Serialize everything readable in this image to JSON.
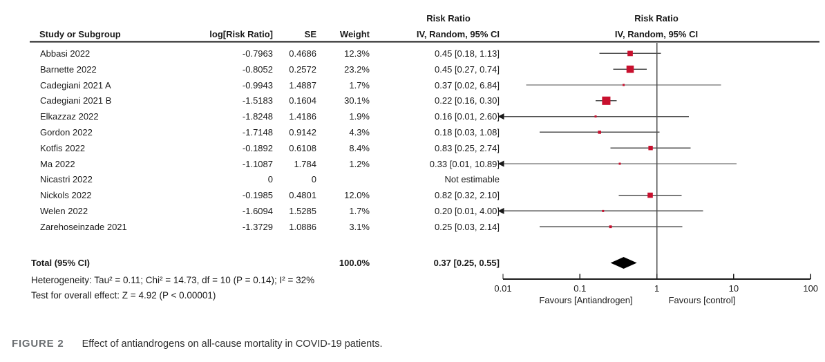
{
  "figure_caption": {
    "label": "FIGURE 2",
    "text": "Effect of antiandrogens on all-cause mortality in COVID-19 patients."
  },
  "table_headers": {
    "study": "Study or Subgroup",
    "log_rr": "log[Risk Ratio]",
    "se": "SE",
    "weight": "Weight",
    "effect": "Risk Ratio",
    "method": "IV, Random, 95% CI"
  },
  "plot_headers": {
    "effect": "Risk Ratio",
    "method": "IV, Random, 95% CI"
  },
  "chart_data": {
    "type": "forest",
    "x_scale": "log10",
    "x_ticks": [
      0.01,
      0.1,
      1,
      10,
      100
    ],
    "x_tick_labels": [
      "0.01",
      "0.1",
      "1",
      "10",
      "100"
    ],
    "null_line": 1,
    "favours_left": "Favours [Antiandrogen]",
    "favours_right": "Favours [control]",
    "marker_color": "#C8102E",
    "line_color": "#4d4d4d",
    "studies": [
      {
        "name": "Abbasi 2022",
        "log_rr": "-0.7963",
        "se": "0.4686",
        "weight": "12.3%",
        "weight_value": 12.3,
        "rr": 0.45,
        "ci_low": 0.18,
        "ci_high": 1.13,
        "ci_text": "0.45 [0.18, 1.13]",
        "arrow_low": false
      },
      {
        "name": "Barnette 2022",
        "log_rr": "-0.8052",
        "se": "0.2572",
        "weight": "23.2%",
        "weight_value": 23.2,
        "rr": 0.45,
        "ci_low": 0.27,
        "ci_high": 0.74,
        "ci_text": "0.45 [0.27, 0.74]",
        "arrow_low": false
      },
      {
        "name": "Cadegiani 2021 A",
        "log_rr": "-0.9943",
        "se": "1.4887",
        "weight": "1.7%",
        "weight_value": 1.7,
        "rr": 0.37,
        "ci_low": 0.02,
        "ci_high": 6.84,
        "ci_text": "0.37 [0.02, 6.84]",
        "arrow_low": false
      },
      {
        "name": "Cadegiani 2021 B",
        "log_rr": "-1.5183",
        "se": "0.1604",
        "weight": "30.1%",
        "weight_value": 30.1,
        "rr": 0.22,
        "ci_low": 0.16,
        "ci_high": 0.3,
        "ci_text": "0.22 [0.16, 0.30]",
        "arrow_low": false
      },
      {
        "name": "Elkazzaz 2022",
        "log_rr": "-1.8248",
        "se": "1.4186",
        "weight": "1.9%",
        "weight_value": 1.9,
        "rr": 0.16,
        "ci_low": 0.01,
        "ci_high": 2.6,
        "ci_text": "0.16 [0.01, 2.60]",
        "arrow_low": true
      },
      {
        "name": "Gordon 2022",
        "log_rr": "-1.7148",
        "se": "0.9142",
        "weight": "4.3%",
        "weight_value": 4.3,
        "rr": 0.18,
        "ci_low": 0.03,
        "ci_high": 1.08,
        "ci_text": "0.18 [0.03, 1.08]",
        "arrow_low": false
      },
      {
        "name": "Kotfis 2022",
        "log_rr": "-0.1892",
        "se": "0.6108",
        "weight": "8.4%",
        "weight_value": 8.4,
        "rr": 0.83,
        "ci_low": 0.25,
        "ci_high": 2.74,
        "ci_text": "0.83 [0.25, 2.74]",
        "arrow_low": false
      },
      {
        "name": "Ma 2022",
        "log_rr": "-1.1087",
        "se": "1.784",
        "weight": "1.2%",
        "weight_value": 1.2,
        "rr": 0.33,
        "ci_low": 0.01,
        "ci_high": 10.89,
        "ci_text": "0.33 [0.01, 10.89]",
        "arrow_low": true
      },
      {
        "name": "Nicastri 2022",
        "log_rr": "0",
        "se": "0",
        "weight": "",
        "weight_value": null,
        "rr": null,
        "ci_low": null,
        "ci_high": null,
        "ci_text": "Not estimable",
        "arrow_low": false
      },
      {
        "name": "Nickols 2022",
        "log_rr": "-0.1985",
        "se": "0.4801",
        "weight": "12.0%",
        "weight_value": 12.0,
        "rr": 0.82,
        "ci_low": 0.32,
        "ci_high": 2.1,
        "ci_text": "0.82 [0.32, 2.10]",
        "arrow_low": false
      },
      {
        "name": "Welen 2022",
        "log_rr": "-1.6094",
        "se": "1.5285",
        "weight": "1.7%",
        "weight_value": 1.7,
        "rr": 0.2,
        "ci_low": 0.01,
        "ci_high": 4.0,
        "ci_text": "0.20 [0.01, 4.00]",
        "arrow_low": true
      },
      {
        "name": "Zarehoseinzade 2021",
        "log_rr": "-1.3729",
        "se": "1.0886",
        "weight": "3.1%",
        "weight_value": 3.1,
        "rr": 0.25,
        "ci_low": 0.03,
        "ci_high": 2.14,
        "ci_text": "0.25 [0.03, 2.14]",
        "arrow_low": false
      }
    ],
    "total": {
      "label": "Total (95% CI)",
      "weight": "100.0%",
      "rr": 0.37,
      "ci_low": 0.25,
      "ci_high": 0.55,
      "ci_text": "0.37 [0.25, 0.55]"
    },
    "heterogeneity": "Heterogeneity: Tau² = 0.11; Chi² = 14.73, df = 10 (P = 0.14); I² = 32%",
    "overall_effect": "Test for overall effect: Z = 4.92 (P < 0.00001)"
  }
}
